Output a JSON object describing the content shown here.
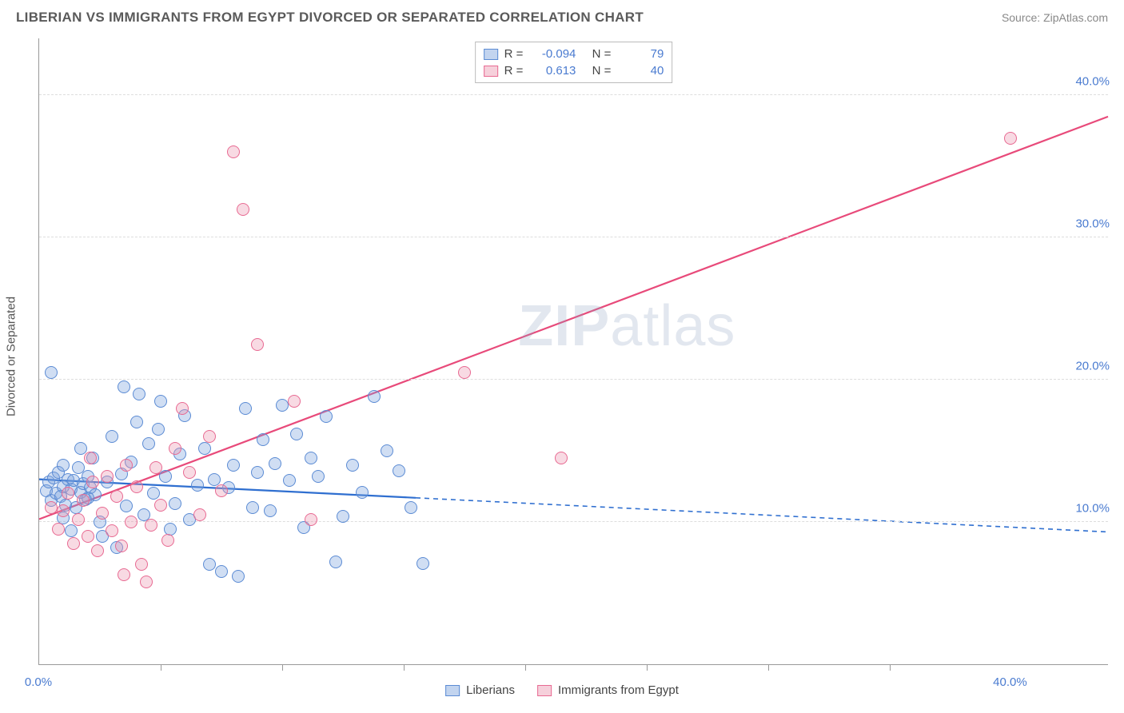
{
  "header": {
    "title": "LIBERIAN VS IMMIGRANTS FROM EGYPT DIVORCED OR SEPARATED CORRELATION CHART",
    "source_prefix": "Source: ",
    "source_name": "ZipAtlas.com"
  },
  "watermark": {
    "zip": "ZIP",
    "atlas": "atlas"
  },
  "chart": {
    "type": "scatter",
    "ylabel": "Divorced or Separated",
    "background_color": "#ffffff",
    "grid_color": "#dddddd",
    "axis_color": "#999999",
    "xlim": [
      0,
      44
    ],
    "ylim": [
      0,
      44
    ],
    "yticks": [
      {
        "v": 10,
        "label": "10.0%"
      },
      {
        "v": 20,
        "label": "20.0%"
      },
      {
        "v": 30,
        "label": "30.0%"
      },
      {
        "v": 40,
        "label": "40.0%"
      }
    ],
    "xticks_minor": [
      5,
      10,
      15,
      20,
      25,
      30,
      35
    ],
    "xticks_labeled": [
      {
        "v": 0,
        "label": "0.0%"
      },
      {
        "v": 40,
        "label": "40.0%"
      }
    ],
    "series": [
      {
        "key": "blue",
        "name": "Liberians",
        "R": "-0.094",
        "N": "79",
        "color_fill": "rgba(120,160,220,0.35)",
        "color_stroke": "#5b8bd4",
        "line_color": "#2f6fd0",
        "trend": {
          "x1": 0,
          "y1": 13.0,
          "x2": 15.5,
          "y2": 11.7,
          "x_ext": 44,
          "y_ext": 9.3
        },
        "points": [
          [
            0.3,
            12.2
          ],
          [
            0.4,
            12.8
          ],
          [
            0.5,
            11.5
          ],
          [
            0.6,
            13.1
          ],
          [
            0.7,
            12.0
          ],
          [
            0.8,
            13.5
          ],
          [
            0.9,
            11.8
          ],
          [
            1.0,
            12.5
          ],
          [
            1.0,
            14.0
          ],
          [
            1.1,
            11.2
          ],
          [
            1.2,
            13.0
          ],
          [
            1.3,
            12.3
          ],
          [
            1.4,
            12.9
          ],
          [
            1.5,
            11.0
          ],
          [
            1.6,
            13.8
          ],
          [
            1.7,
            12.1
          ],
          [
            1.8,
            12.7
          ],
          [
            1.9,
            11.6
          ],
          [
            2.0,
            13.2
          ],
          [
            2.1,
            12.4
          ],
          [
            2.2,
            14.5
          ],
          [
            2.3,
            11.9
          ],
          [
            2.5,
            10.0
          ],
          [
            2.6,
            9.0
          ],
          [
            2.8,
            12.8
          ],
          [
            3.0,
            16.0
          ],
          [
            3.2,
            8.2
          ],
          [
            3.4,
            13.4
          ],
          [
            3.5,
            19.5
          ],
          [
            3.6,
            11.1
          ],
          [
            3.8,
            14.2
          ],
          [
            4.0,
            17.0
          ],
          [
            4.1,
            19.0
          ],
          [
            4.3,
            10.5
          ],
          [
            4.5,
            15.5
          ],
          [
            4.7,
            12.0
          ],
          [
            4.9,
            16.5
          ],
          [
            5.0,
            18.5
          ],
          [
            5.2,
            13.2
          ],
          [
            5.4,
            9.5
          ],
          [
            5.6,
            11.3
          ],
          [
            5.8,
            14.8
          ],
          [
            6.0,
            17.5
          ],
          [
            6.2,
            10.2
          ],
          [
            6.5,
            12.6
          ],
          [
            6.8,
            15.2
          ],
          [
            7.0,
            7.0
          ],
          [
            7.2,
            13.0
          ],
          [
            7.5,
            6.5
          ],
          [
            7.8,
            12.4
          ],
          [
            8.0,
            14.0
          ],
          [
            8.2,
            6.2
          ],
          [
            8.5,
            18.0
          ],
          [
            8.8,
            11.0
          ],
          [
            9.0,
            13.5
          ],
          [
            9.2,
            15.8
          ],
          [
            9.5,
            10.8
          ],
          [
            9.7,
            14.1
          ],
          [
            10.0,
            18.2
          ],
          [
            10.3,
            12.9
          ],
          [
            10.6,
            16.2
          ],
          [
            10.9,
            9.6
          ],
          [
            11.2,
            14.5
          ],
          [
            11.5,
            13.2
          ],
          [
            11.8,
            17.4
          ],
          [
            12.2,
            7.2
          ],
          [
            12.5,
            10.4
          ],
          [
            12.9,
            14.0
          ],
          [
            13.3,
            12.1
          ],
          [
            13.8,
            18.8
          ],
          [
            14.3,
            15.0
          ],
          [
            14.8,
            13.6
          ],
          [
            15.3,
            11.0
          ],
          [
            15.8,
            7.1
          ],
          [
            0.5,
            20.5
          ],
          [
            1.0,
            10.3
          ],
          [
            1.3,
            9.4
          ],
          [
            2.0,
            11.7
          ],
          [
            1.7,
            15.2
          ]
        ]
      },
      {
        "key": "pink",
        "name": "Immigrants from Egypt",
        "R": "0.613",
        "N": "40",
        "color_fill": "rgba(235,150,175,0.35)",
        "color_stroke": "#e86a92",
        "line_color": "#e84a7a",
        "trend": {
          "x1": 0,
          "y1": 10.2,
          "x2": 44,
          "y2": 38.5,
          "x_ext": 44,
          "y_ext": 38.5
        },
        "points": [
          [
            0.5,
            11.0
          ],
          [
            0.8,
            9.5
          ],
          [
            1.0,
            10.8
          ],
          [
            1.2,
            12.0
          ],
          [
            1.4,
            8.5
          ],
          [
            1.6,
            10.2
          ],
          [
            1.8,
            11.5
          ],
          [
            2.0,
            9.0
          ],
          [
            2.2,
            12.8
          ],
          [
            2.4,
            8.0
          ],
          [
            2.6,
            10.6
          ],
          [
            2.8,
            13.2
          ],
          [
            3.0,
            9.4
          ],
          [
            3.2,
            11.8
          ],
          [
            3.4,
            8.3
          ],
          [
            3.6,
            14.0
          ],
          [
            3.8,
            10.0
          ],
          [
            4.0,
            12.5
          ],
          [
            4.2,
            7.0
          ],
          [
            4.4,
            5.8
          ],
          [
            4.6,
            9.8
          ],
          [
            5.0,
            11.2
          ],
          [
            5.3,
            8.7
          ],
          [
            5.6,
            15.2
          ],
          [
            5.9,
            18.0
          ],
          [
            6.2,
            13.5
          ],
          [
            6.6,
            10.5
          ],
          [
            7.0,
            16.0
          ],
          [
            7.5,
            12.2
          ],
          [
            8.0,
            36.0
          ],
          [
            8.4,
            32.0
          ],
          [
            9.0,
            22.5
          ],
          [
            10.5,
            18.5
          ],
          [
            11.2,
            10.2
          ],
          [
            17.5,
            20.5
          ],
          [
            21.5,
            14.5
          ],
          [
            40.0,
            37.0
          ],
          [
            2.1,
            14.5
          ],
          [
            3.5,
            6.3
          ],
          [
            4.8,
            13.8
          ]
        ]
      }
    ],
    "legend_top": {
      "R_label": "R =",
      "N_label": "N ="
    },
    "legend_bottom": {}
  }
}
